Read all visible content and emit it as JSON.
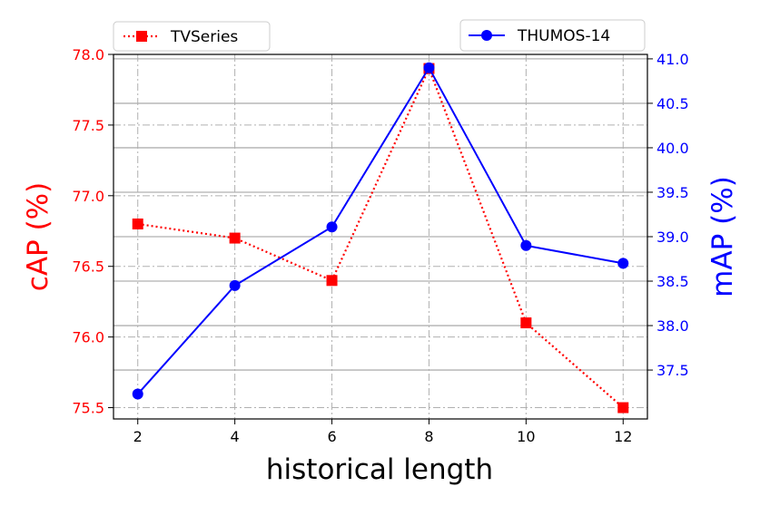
{
  "chart_data": {
    "type": "line",
    "title": "",
    "xlabel": "historical length",
    "ylabel_left": "cAP (%)",
    "ylabel_right": "mAP (%)",
    "x": [
      2,
      4,
      6,
      8,
      10,
      12
    ],
    "x_ticks": [
      "2",
      "4",
      "6",
      "8",
      "10",
      "12"
    ],
    "left_axis": {
      "lim": [
        75.42,
        78.0
      ],
      "ticks": [
        75.5,
        76.0,
        76.5,
        77.0,
        77.5,
        78.0
      ],
      "tick_labels": [
        "75.5",
        "76.0",
        "76.5",
        "77.0",
        "77.5",
        "78.0"
      ],
      "color": "#ff0000"
    },
    "right_axis": {
      "lim": [
        36.95,
        41.05
      ],
      "ticks": [
        37.5,
        38.0,
        38.5,
        39.0,
        39.5,
        40.0,
        40.5,
        41.0
      ],
      "tick_labels": [
        "37.5",
        "38.0",
        "38.5",
        "39.0",
        "39.5",
        "40.0",
        "40.5",
        "41.0"
      ],
      "color": "#0000ff"
    },
    "series": [
      {
        "name": "TVSeries",
        "axis": "left",
        "values": [
          76.8,
          76.7,
          76.4,
          77.9,
          76.1,
          75.5
        ],
        "color": "#ff0000",
        "line_style": "dotted",
        "marker": "square"
      },
      {
        "name": "THUMOS-14",
        "axis": "right",
        "values": [
          37.23,
          38.45,
          39.11,
          40.9,
          38.9,
          38.7
        ],
        "color": "#0000ff",
        "line_style": "solid",
        "marker": "circle"
      }
    ],
    "grid": true,
    "legend": [
      "upper-left",
      "upper-right"
    ]
  }
}
